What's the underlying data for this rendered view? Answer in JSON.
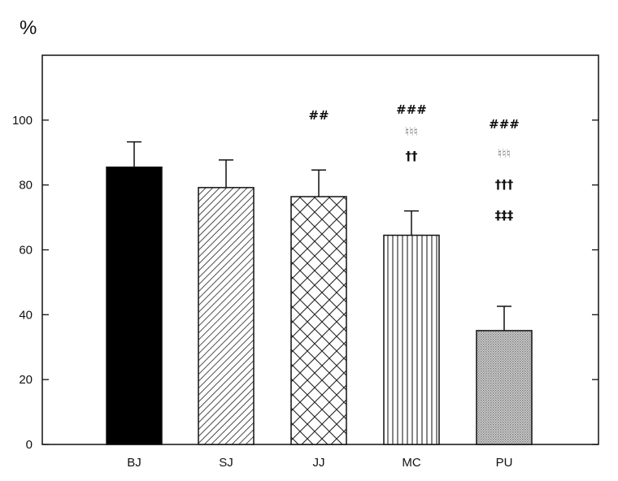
{
  "chart_data": {
    "type": "bar",
    "ylabel": "%",
    "ylim": [
      0,
      120
    ],
    "yticks": [
      0,
      20,
      40,
      60,
      80,
      100
    ],
    "grid": false,
    "categories": [
      "BJ",
      "SJ",
      "JJ",
      "MC",
      "PU"
    ],
    "values": [
      85.5,
      79.2,
      76.4,
      64.5,
      35.1
    ],
    "errors": [
      7.8,
      8.5,
      8.2,
      7.5,
      7.5
    ],
    "patterns": [
      "solid-black",
      "diagonal-hatch",
      "crosshatch",
      "vertical-lines",
      "dotted-gray"
    ],
    "annotations": [
      [],
      [],
      [
        "##"
      ],
      [
        "###",
        "♮♮♮",
        "††"
      ],
      [
        "###",
        "♮♮♮",
        "†††",
        "‡‡‡"
      ]
    ]
  }
}
